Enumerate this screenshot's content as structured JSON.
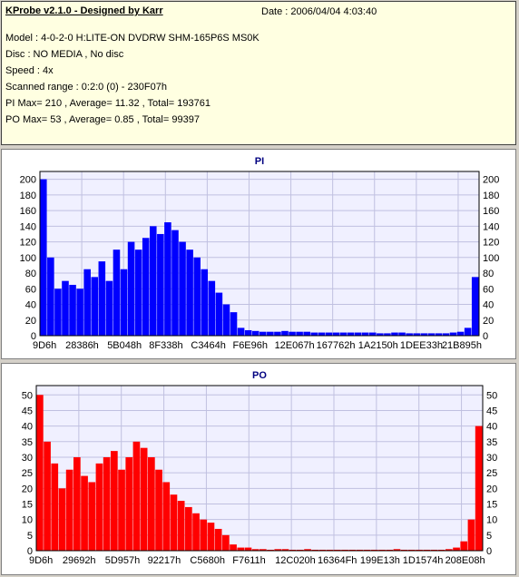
{
  "info": {
    "title": "KProbe v2.1.0 - Designed by Karr",
    "date": "Date : 2006/04/04 4:03:40",
    "lines": [
      "Model : 4-0-2-0 H:LITE-ON DVDRW SHM-165P6S MS0K",
      "Disc : NO MEDIA , No disc",
      "Speed : 4x",
      "Scanned range : 0:2:0 (0) - 230F07h",
      "PI Max= 210 , Average= 11.32 , Total= 193761",
      "PO Max= 53 , Average= 0.85 , Total= 99397"
    ]
  },
  "colors": {
    "pi_series": "#0000ff",
    "po_series": "#ff0000",
    "plot_background": "#f0f0ff",
    "grid": "#c0c0e0"
  },
  "chart_data": [
    {
      "type": "bar",
      "title": "PI",
      "xlabel": "",
      "ylabel": "",
      "ylim": [
        0,
        210
      ],
      "yticks": [
        0,
        20,
        40,
        60,
        80,
        100,
        120,
        140,
        160,
        180,
        200
      ],
      "xticks": [
        "9D6h",
        "28386h",
        "5B048h",
        "8F338h",
        "C3464h",
        "F6E96h",
        "12E067h",
        "167762h",
        "1A2150h",
        "1DEE33h",
        "21B895h"
      ],
      "grid": true,
      "series": [
        {
          "values": [
            200,
            100,
            60,
            70,
            65,
            60,
            85,
            75,
            95,
            70,
            110,
            85,
            120,
            110,
            125,
            140,
            130,
            145,
            135,
            120,
            110,
            100,
            85,
            70,
            55,
            40,
            30,
            10,
            7,
            6,
            5,
            5,
            5,
            6,
            5,
            5,
            5,
            4,
            4,
            4,
            4,
            4,
            4,
            4,
            4,
            4,
            3,
            3,
            4,
            4,
            3,
            3,
            3,
            3,
            3,
            3,
            4,
            5,
            10,
            75
          ]
        }
      ]
    },
    {
      "type": "bar",
      "title": "PO",
      "xlabel": "",
      "ylabel": "",
      "ylim": [
        0,
        53
      ],
      "yticks": [
        0,
        5,
        10,
        15,
        20,
        25,
        30,
        35,
        40,
        45,
        50
      ],
      "xticks": [
        "9D6h",
        "29692h",
        "5D957h",
        "92217h",
        "C5680h",
        "F7611h",
        "12C020h",
        "16364Fh",
        "199E13h",
        "1D1574h",
        "208E08h"
      ],
      "grid": true,
      "series": [
        {
          "values": [
            50,
            35,
            28,
            20,
            26,
            30,
            24,
            22,
            28,
            30,
            32,
            26,
            30,
            35,
            33,
            30,
            26,
            22,
            18,
            16,
            14,
            12,
            10,
            9,
            7,
            5,
            2,
            1,
            1,
            0.5,
            0.5,
            0.3,
            0.5,
            0.5,
            0.3,
            0.3,
            0.5,
            0.3,
            0.3,
            0.3,
            0.3,
            0.3,
            0.3,
            0.3,
            0.3,
            0.3,
            0.3,
            0.3,
            0.5,
            0.3,
            0.3,
            0.3,
            0.3,
            0.3,
            0.3,
            0.5,
            1,
            3,
            10,
            40
          ]
        }
      ]
    }
  ]
}
